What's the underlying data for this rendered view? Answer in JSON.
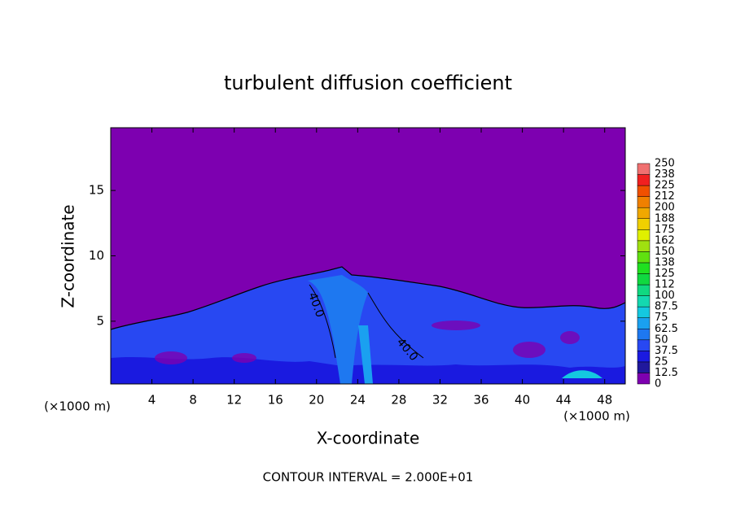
{
  "chart_data": {
    "type": "contour",
    "title": "turbulent diffusion coefficient",
    "x_label": "X-coordinate",
    "y_label": "Z-coordinate",
    "x_unit": "(×1000 m)",
    "y_unit": "(×1000 m)",
    "xlim": [
      0,
      50
    ],
    "ylim": [
      0.2,
      19.8
    ],
    "xticks": [
      4,
      8,
      12,
      16,
      20,
      24,
      28,
      32,
      36,
      40,
      44,
      48
    ],
    "yticks": [
      5,
      10,
      15
    ],
    "contour_labels": [
      "40.0",
      "40.0"
    ],
    "footer": "CONTOUR INTERVAL = 2.000E+01",
    "colorbar": {
      "levels": [
        0,
        12.5,
        25,
        37.5,
        50,
        62.5,
        75,
        87.5,
        100,
        112,
        125,
        138,
        150,
        162,
        175,
        188,
        200,
        212,
        225,
        238,
        250
      ],
      "colors": [
        "#7d00b0",
        "#20189c",
        "#1a1ae0",
        "#2848f2",
        "#1e78f0",
        "#1aa0f0",
        "#14c8e0",
        "#14d8b0",
        "#10d880",
        "#10d840",
        "#20e020",
        "#60e010",
        "#a0e010",
        "#e0f000",
        "#f0d000",
        "#f0a800",
        "#f08000",
        "#f05000",
        "#f02020",
        "#f07070"
      ]
    }
  }
}
